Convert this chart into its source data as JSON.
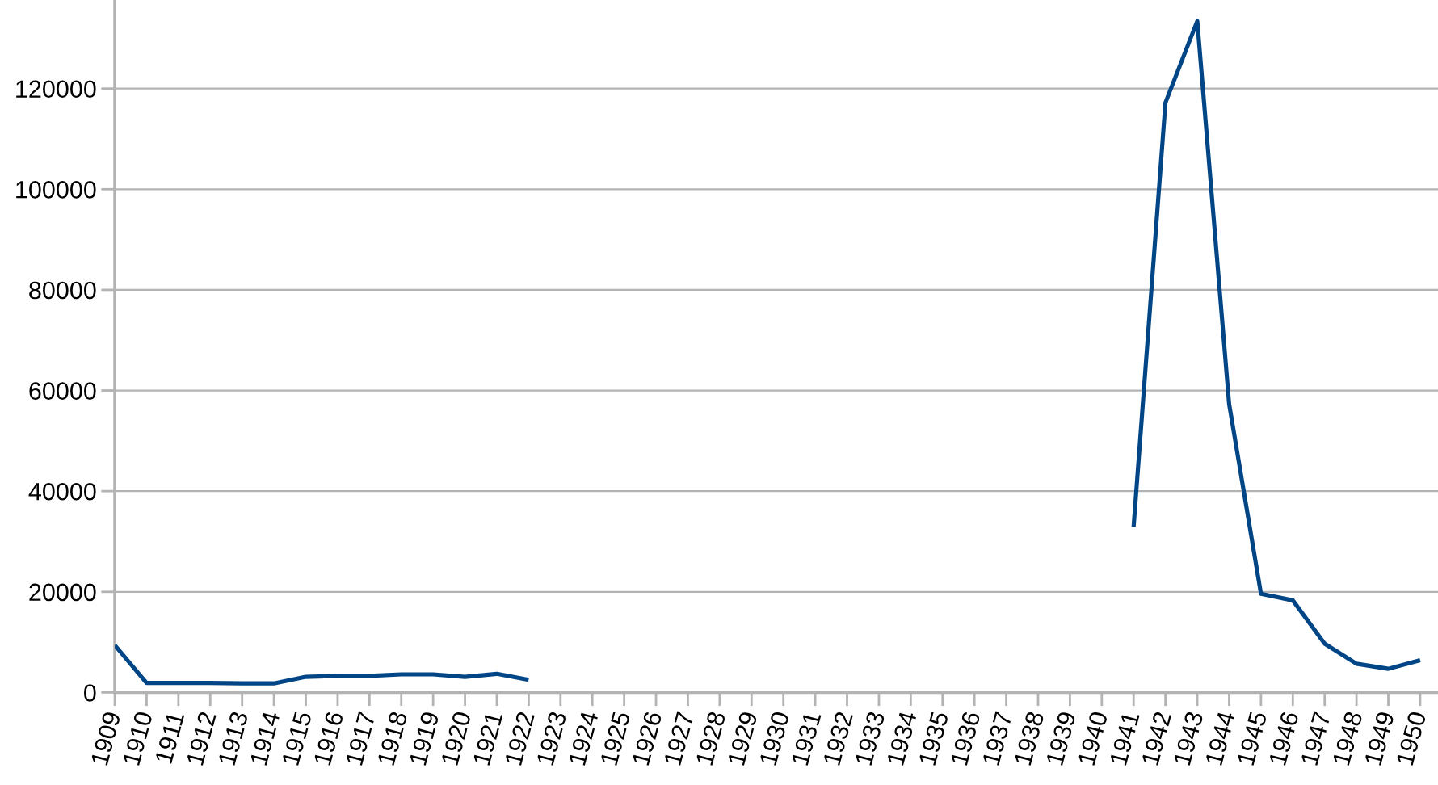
{
  "chart_data": {
    "type": "line",
    "categories": [
      "1909",
      "1910",
      "1911",
      "1912",
      "1913",
      "1914",
      "1915",
      "1916",
      "1917",
      "1918",
      "1919",
      "1920",
      "1921",
      "1922",
      "1923",
      "1924",
      "1925",
      "1926",
      "1927",
      "1928",
      "1929",
      "1930",
      "1931",
      "1932",
      "1933",
      "1934",
      "1935",
      "1936",
      "1937",
      "1938",
      "1939",
      "1940",
      "1941",
      "1942",
      "1943",
      "1944",
      "1945",
      "1946",
      "1947",
      "1948",
      "1949",
      "1950"
    ],
    "series": [
      {
        "color": "#004586",
        "values": [
          9400,
          1900,
          1900,
          1900,
          1800,
          1800,
          3100,
          3300,
          3300,
          3600,
          3600,
          3100,
          3700,
          2500,
          null,
          null,
          null,
          null,
          null,
          null,
          null,
          null,
          null,
          null,
          null,
          null,
          null,
          null,
          null,
          null,
          null,
          null,
          32900,
          117200,
          133400,
          57300,
          19600,
          18300,
          9700,
          5700,
          4700,
          6400
        ]
      }
    ],
    "ylim": [
      0,
      137600
    ],
    "yticks": [
      0,
      20000,
      40000,
      60000,
      80000,
      100000,
      120000
    ],
    "grid": "y",
    "line_style": "solid"
  }
}
